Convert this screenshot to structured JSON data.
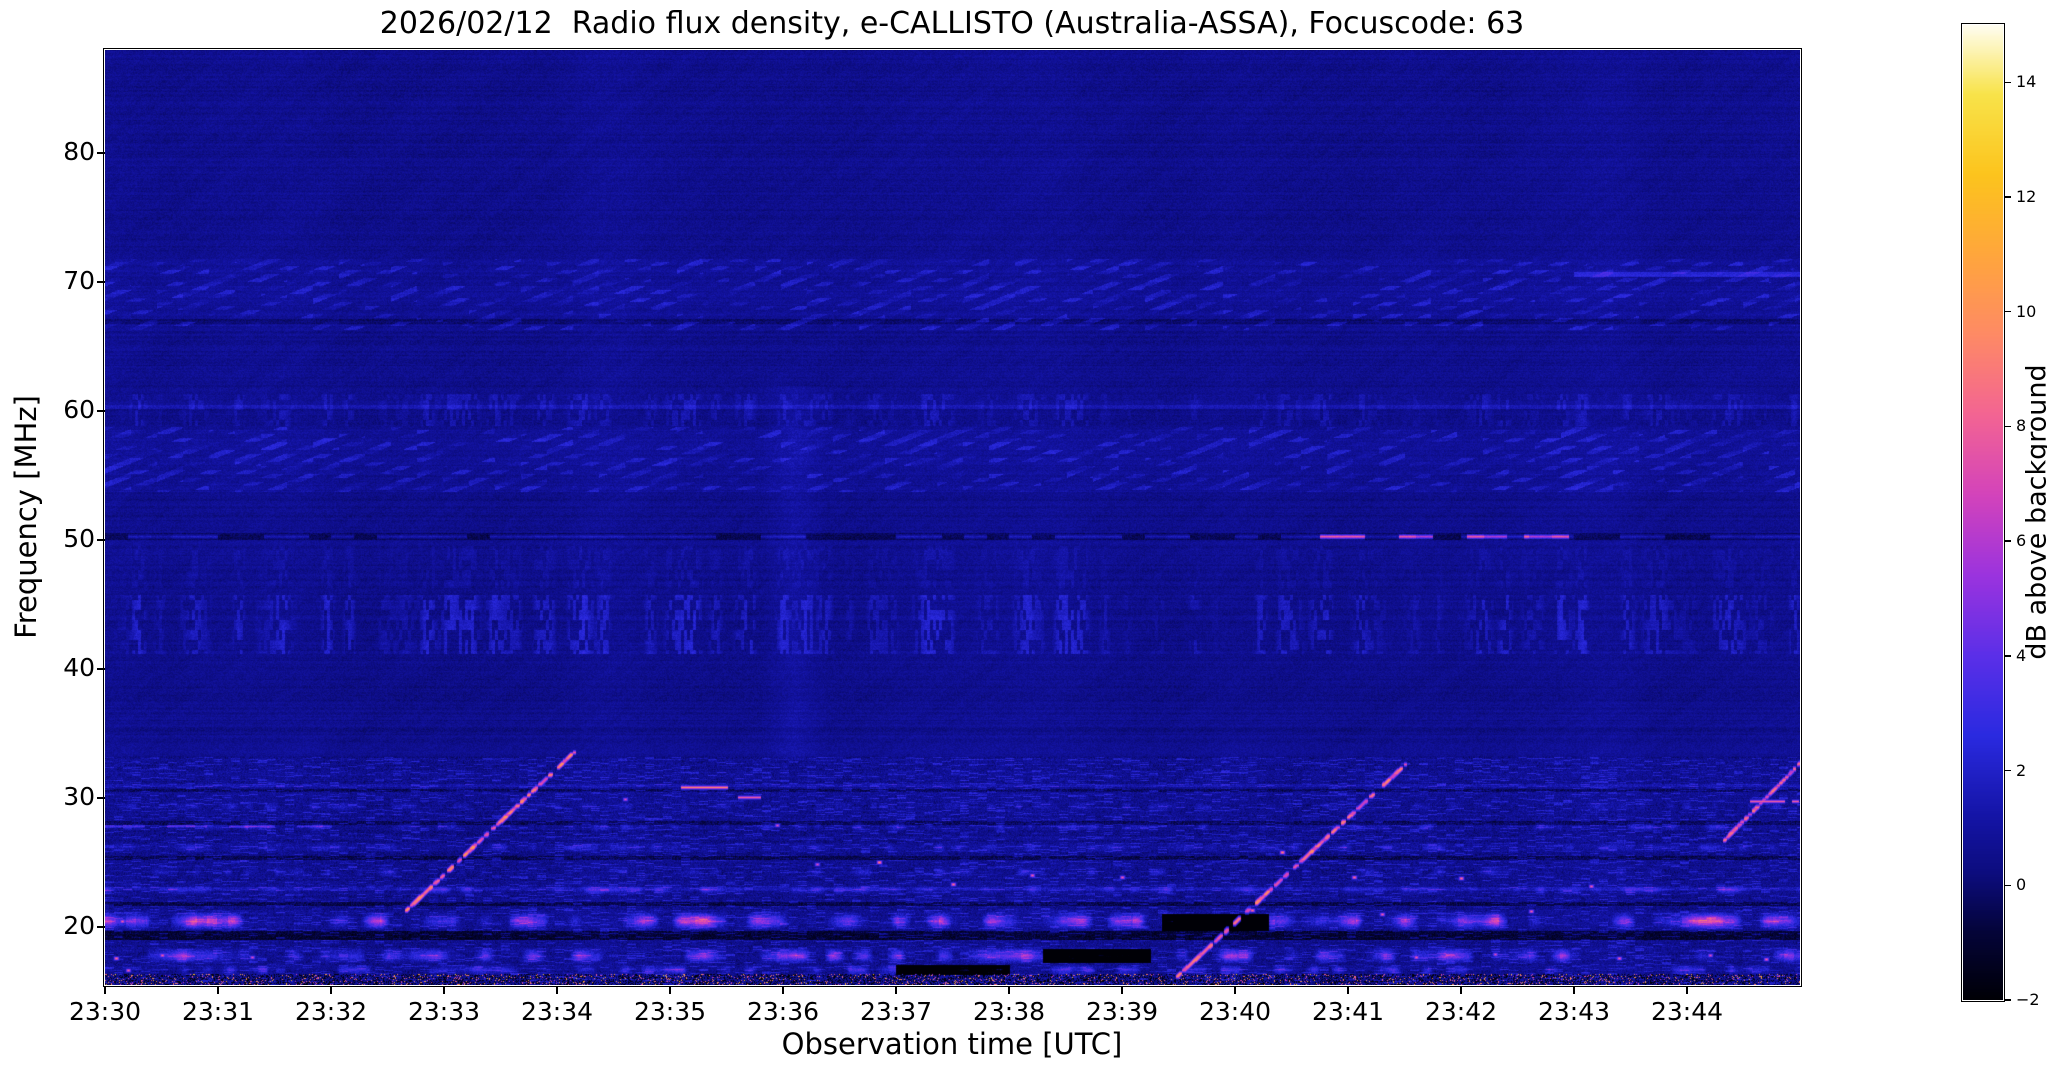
{
  "chart_data": {
    "type": "heatmap",
    "title": "2026/02/12  Radio flux density, e-CALLISTO (Australia-ASSA), Focuscode: 63",
    "xlabel": "Observation time [UTC]",
    "ylabel": "Frequency [MHz]",
    "x_tick_labels": [
      "23:30",
      "23:31",
      "23:32",
      "23:33",
      "23:34",
      "23:35",
      "23:36",
      "23:37",
      "23:38",
      "23:39",
      "23:40",
      "23:41",
      "23:42",
      "23:43",
      "23:44"
    ],
    "x_range_minutes": [
      0,
      15
    ],
    "y_tick_values": [
      20,
      30,
      40,
      50,
      60,
      70,
      80
    ],
    "y_tick_labels": [
      "20",
      "30",
      "40",
      "50",
      "60",
      "70",
      "80"
    ],
    "y_range_mhz": [
      15.5,
      88
    ],
    "grid": false,
    "colorbar": {
      "label": "dB above background",
      "tick_values": [
        -2,
        0,
        2,
        4,
        6,
        8,
        10,
        12,
        14
      ],
      "tick_labels": [
        "−2",
        "0",
        "2",
        "4",
        "6",
        "8",
        "10",
        "12",
        "14"
      ],
      "value_range": [
        -2,
        15
      ],
      "stops": [
        {
          "v": -2.0,
          "c": "#000006"
        },
        {
          "v": -0.8,
          "c": "#04043a"
        },
        {
          "v": 0.2,
          "c": "#0c0c7e"
        },
        {
          "v": 1.2,
          "c": "#1414a6"
        },
        {
          "v": 2.6,
          "c": "#2a2ae0"
        },
        {
          "v": 4.0,
          "c": "#5b2fe8"
        },
        {
          "v": 5.4,
          "c": "#9b33de"
        },
        {
          "v": 6.8,
          "c": "#d343bb"
        },
        {
          "v": 8.2,
          "c": "#f36493"
        },
        {
          "v": 9.6,
          "c": "#fe8a65"
        },
        {
          "v": 11.0,
          "c": "#ffa63c"
        },
        {
          "v": 12.4,
          "c": "#fcc41d"
        },
        {
          "v": 13.8,
          "c": "#f8e34a"
        },
        {
          "v": 15.0,
          "c": "#fffdf0"
        }
      ]
    },
    "noise": {
      "floor_db": 0.6,
      "grain": 0.85,
      "row_mod": 0.5
    },
    "bands": {
      "hatch": [
        {
          "f_lo": 66.3,
          "f_hi": 71.8,
          "amp": 1.15
        },
        {
          "f_lo": 53.8,
          "f_hi": 58.8,
          "amp": 1.15
        }
      ],
      "striation": [
        {
          "f_lo": 58.9,
          "f_hi": 61.4,
          "amp": 0.8
        },
        {
          "f_lo": 46.3,
          "f_hi": 49.6,
          "amp": 0.45
        },
        {
          "f_lo": 41.2,
          "f_hi": 45.8,
          "amp": 1.25
        }
      ],
      "busy": {
        "f_lo": 15.5,
        "f_hi": 33.2,
        "amp": 1.0
      }
    },
    "rows": {
      "dark": [
        {
          "f": 50.3,
          "h": 0.5,
          "amp": -0.9
        },
        {
          "f": 67.0,
          "h": 0.35,
          "amp": -0.7
        },
        {
          "f": 19.4,
          "h": 0.7,
          "amp": -1.6
        },
        {
          "f": 21.8,
          "h": 0.3,
          "amp": -1.2
        },
        {
          "f": 25.4,
          "h": 0.3,
          "amp": -1.1
        },
        {
          "f": 28.1,
          "h": 0.3,
          "amp": -1.0
        },
        {
          "f": 30.6,
          "h": 0.25,
          "amp": -0.8
        }
      ],
      "faint_bright": [
        {
          "f": 60.35,
          "h": 0.3,
          "amp": 0.9,
          "t0": 0,
          "t1": 15
        },
        {
          "f": 70.6,
          "h": 0.4,
          "amp": 1.6,
          "t0": 13.0,
          "t1": 15
        },
        {
          "f": 31.0,
          "h": 0.28,
          "amp": 0.9,
          "t0": 0,
          "t1": 15
        },
        {
          "f": 23.0,
          "h": 0.3,
          "amp": 0.8,
          "t0": 0,
          "t1": 15
        }
      ]
    },
    "line50": {
      "f": 50.3,
      "h": 0.24,
      "dash_amp": 2.4,
      "bright_amp": 6.8,
      "bright_segments": [
        [
          10.75,
          11.15
        ],
        [
          11.45,
          11.75
        ],
        [
          12.05,
          12.4
        ],
        [
          12.55,
          12.95
        ]
      ]
    },
    "blob_rows": [
      {
        "f": 20.5,
        "h": 0.75,
        "amp": 8.5,
        "th": 0.38,
        "scale": 0.16
      },
      {
        "f": 17.8,
        "h": 0.65,
        "amp": 7.5,
        "th": 0.4,
        "scale": 0.14
      },
      {
        "f": 16.7,
        "h": 0.45,
        "amp": 4.0,
        "th": 0.45,
        "scale": 0.1
      },
      {
        "f": 22.9,
        "h": 0.4,
        "amp": 3.2,
        "th": 0.52,
        "scale": 0.1
      },
      {
        "f": 24.3,
        "h": 0.4,
        "amp": 2.6,
        "th": 0.55,
        "scale": 0.09
      },
      {
        "f": 26.2,
        "h": 0.4,
        "amp": 2.4,
        "th": 0.55,
        "scale": 0.09
      },
      {
        "f": 27.8,
        "h": 0.4,
        "amp": 2.8,
        "th": 0.55,
        "scale": 0.09
      },
      {
        "f": 29.4,
        "h": 0.35,
        "amp": 2.0,
        "th": 0.58,
        "scale": 0.08
      }
    ],
    "dark_gaps": [
      {
        "f": 20.4,
        "h": 1.3,
        "t0": 9.35,
        "t1": 10.3,
        "amp": -9
      },
      {
        "f": 17.8,
        "h": 1.1,
        "t0": 8.3,
        "t1": 9.25,
        "amp": -7
      },
      {
        "f": 16.7,
        "h": 0.8,
        "t0": 7.0,
        "t1": 8.0,
        "amp": -5
      }
    ],
    "sweeps": [
      {
        "t0": 2.6,
        "f0": 20.8,
        "t1": 4.15,
        "f1": 33.6,
        "amp": 10.0
      },
      {
        "t0": 9.4,
        "f0": 15.5,
        "t1": 11.5,
        "f1": 32.6,
        "amp": 9.5
      },
      {
        "t0": 14.3,
        "f0": 26.5,
        "t1": 15.05,
        "f1": 33.2,
        "amp": 9.0
      }
    ],
    "bright_dashes": [
      {
        "f": 30.85,
        "t0": 5.1,
        "t1": 5.55,
        "amp": 9.5
      },
      {
        "f": 30.1,
        "t0": 5.6,
        "t1": 5.8,
        "amp": 8.0
      },
      {
        "f": 29.8,
        "t0": 14.55,
        "t1": 15.0,
        "amp": 8.0
      }
    ],
    "left_dashes": {
      "f": 27.8,
      "amp": 2.6,
      "segments": [
        [
          0.0,
          0.35
        ],
        [
          0.55,
          0.9
        ],
        [
          1.1,
          1.5
        ],
        [
          1.7,
          2.0
        ]
      ]
    },
    "dots": [
      {
        "t": 6.85,
        "f": 25.0,
        "amp": 11
      },
      {
        "t": 7.5,
        "f": 23.3,
        "amp": 10
      },
      {
        "t": 8.2,
        "f": 24.0,
        "amp": 9
      },
      {
        "t": 9.0,
        "f": 23.9,
        "amp": 9
      },
      {
        "t": 10.15,
        "f": 21.3,
        "amp": 10
      },
      {
        "t": 10.42,
        "f": 25.8,
        "amp": 11
      },
      {
        "t": 11.05,
        "f": 23.9,
        "amp": 10
      },
      {
        "t": 11.3,
        "f": 21.0,
        "amp": 9
      },
      {
        "t": 12.0,
        "f": 23.8,
        "amp": 10
      },
      {
        "t": 12.62,
        "f": 21.2,
        "amp": 9
      },
      {
        "t": 13.15,
        "f": 23.2,
        "amp": 9
      },
      {
        "t": 4.6,
        "f": 29.9,
        "amp": 8
      },
      {
        "t": 5.95,
        "f": 27.9,
        "amp": 8
      },
      {
        "t": 6.3,
        "f": 24.9,
        "amp": 8
      },
      {
        "t": 0.1,
        "f": 17.6,
        "amp": 10
      },
      {
        "t": 0.5,
        "f": 17.8,
        "amp": 9
      },
      {
        "t": 1.3,
        "f": 17.7,
        "amp": 8
      },
      {
        "t": 0.15,
        "f": 20.5,
        "amp": 9
      },
      {
        "t": 0.9,
        "f": 20.4,
        "amp": 8
      },
      {
        "t": 0.2,
        "f": 16.7,
        "amp": 9
      },
      {
        "t": 11.6,
        "f": 17.7,
        "amp": 9
      },
      {
        "t": 12.3,
        "f": 17.9,
        "amp": 8
      },
      {
        "t": 13.4,
        "f": 17.6,
        "amp": 9
      },
      {
        "t": 14.2,
        "f": 17.8,
        "amp": 8
      },
      {
        "t": 14.7,
        "f": 17.5,
        "amp": 9
      }
    ],
    "pepper_band": {
      "f_lo": 15.5,
      "f_hi": 16.4,
      "dark_frac": 0.28,
      "bright_frac": 0.08
    },
    "vert_smear": {
      "t": 6.1,
      "w": 0.3,
      "f_lo": 33,
      "f_hi": 62,
      "amp": 0.55
    }
  }
}
